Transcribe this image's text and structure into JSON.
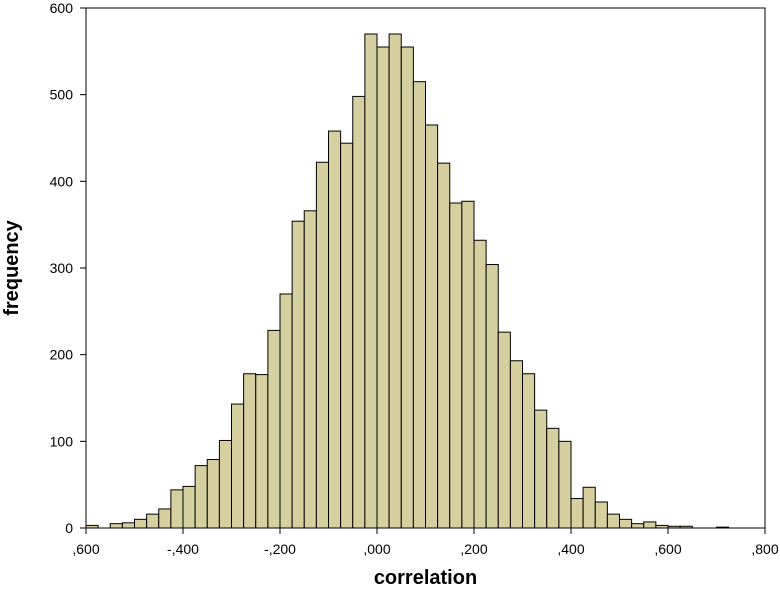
{
  "chart_data": {
    "type": "bar",
    "title": "",
    "xlabel": "correlation",
    "ylabel": "frequency",
    "xlim": [
      -0.6,
      0.8
    ],
    "ylim": [
      0,
      600
    ],
    "bin_width": 0.025,
    "x_tick_values": [
      -0.6,
      -0.4,
      -0.2,
      0.0,
      0.2,
      0.4,
      0.6,
      0.8
    ],
    "x_tick_labels": [
      ",600",
      "-,400",
      "-,200",
      ",000",
      ",200",
      ",400",
      ",600",
      ",800"
    ],
    "y_tick_values": [
      0,
      100,
      200,
      300,
      400,
      500,
      600
    ],
    "y_tick_labels": [
      "0",
      "100",
      "200",
      "300",
      "400",
      "500",
      "600"
    ],
    "grid": false,
    "legend": "none",
    "bar_fill": "#d6cf9f",
    "bar_stroke": "#000000",
    "series": [
      {
        "bin_starts": [
          -0.6,
          -0.575,
          -0.55,
          -0.525,
          -0.5,
          -0.475,
          -0.45,
          -0.425,
          -0.4,
          -0.375,
          -0.35,
          -0.325,
          -0.3,
          -0.275,
          -0.25,
          -0.225,
          -0.2,
          -0.175,
          -0.15,
          -0.125,
          -0.1,
          -0.075,
          -0.05,
          -0.025,
          0.0,
          0.025,
          0.05,
          0.075,
          0.1,
          0.125,
          0.15,
          0.175,
          0.2,
          0.225,
          0.25,
          0.275,
          0.3,
          0.325,
          0.35,
          0.375,
          0.4,
          0.425,
          0.45,
          0.475,
          0.5,
          0.525,
          0.55,
          0.575,
          0.6,
          0.625,
          0.65,
          0.675,
          0.7
        ],
        "values": [
          3,
          0,
          5,
          6,
          10,
          16,
          22,
          44,
          48,
          72,
          79,
          101,
          143,
          178,
          177,
          228,
          270,
          354,
          366,
          422,
          458,
          444,
          498,
          570,
          555,
          570,
          555,
          515,
          465,
          421,
          375,
          377,
          332,
          304,
          226,
          193,
          178,
          136,
          115,
          100,
          34,
          47,
          30,
          16,
          10,
          5,
          7,
          3,
          2,
          2,
          0,
          0,
          1
        ]
      }
    ]
  }
}
